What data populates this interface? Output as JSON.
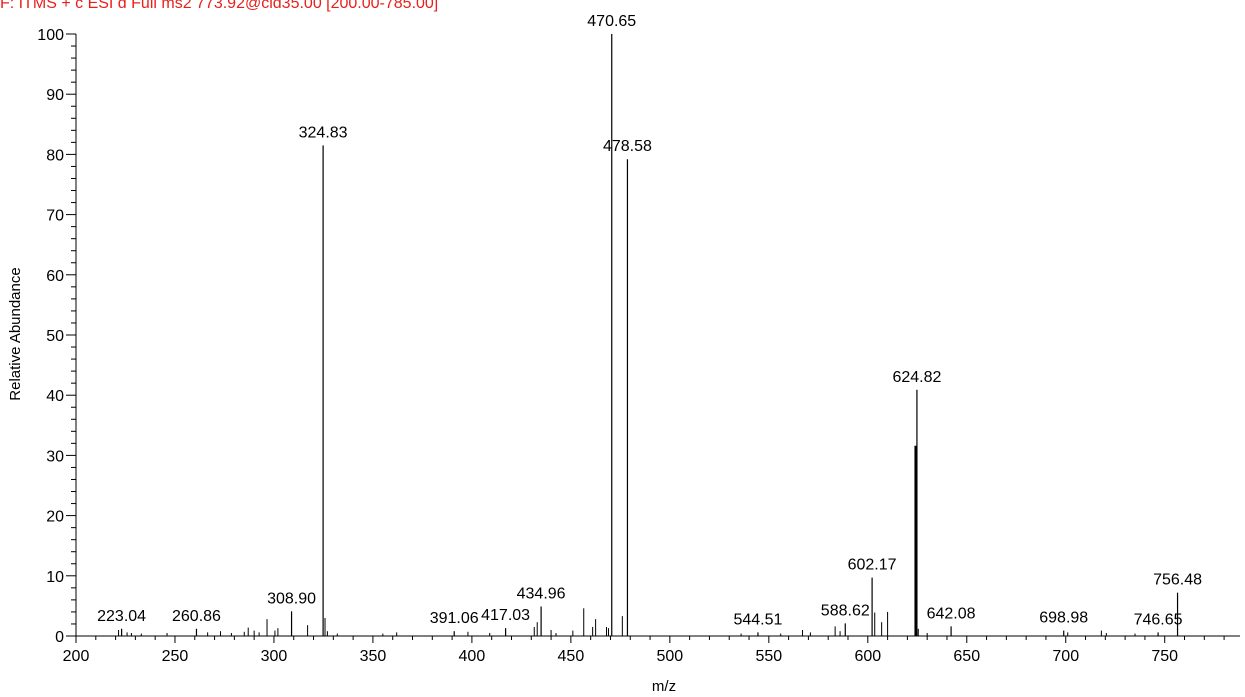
{
  "header": {
    "scan_filter": "F: ITMS + c ESI d Full ms2 773.92@cid35.00 [200.00-785.00]"
  },
  "colors": {
    "header_text": "#e8201c",
    "peak": "#000000",
    "label_connector": "#1aa33a"
  },
  "chart_data": {
    "type": "bar",
    "subtype": "mass-spectrum-stick",
    "xlabel": "m/z",
    "ylabel": "Relative Abundance",
    "xlim": [
      200,
      785
    ],
    "ylim": [
      0,
      100
    ],
    "x_ticks": [
      200,
      250,
      300,
      350,
      400,
      450,
      500,
      550,
      600,
      650,
      700,
      750
    ],
    "y_ticks": [
      0,
      10,
      20,
      30,
      40,
      50,
      60,
      70,
      80,
      90,
      100
    ],
    "grid": false,
    "labeled_peaks": [
      {
        "mz": 223.04,
        "intensity": 1.2,
        "label": "223.04"
      },
      {
        "mz": 260.86,
        "intensity": 1.2,
        "label": "260.86"
      },
      {
        "mz": 308.9,
        "intensity": 4.1,
        "label": "308.90"
      },
      {
        "mz": 324.83,
        "intensity": 81.5,
        "label": "324.83"
      },
      {
        "mz": 391.06,
        "intensity": 0.8,
        "label": "391.06"
      },
      {
        "mz": 417.03,
        "intensity": 1.3,
        "label": "417.03"
      },
      {
        "mz": 434.96,
        "intensity": 4.9,
        "label": "434.96"
      },
      {
        "mz": 470.65,
        "intensity": 100,
        "label": "470.65"
      },
      {
        "mz": 478.58,
        "intensity": 79.2,
        "label": "478.58"
      },
      {
        "mz": 544.51,
        "intensity": 0.6,
        "label": "544.51"
      },
      {
        "mz": 588.62,
        "intensity": 2.1,
        "label": "588.62"
      },
      {
        "mz": 602.17,
        "intensity": 9.7,
        "label": "602.17"
      },
      {
        "mz": 624.82,
        "intensity": 40.9,
        "label": "624.82"
      },
      {
        "mz": 642.08,
        "intensity": 1.6,
        "label": "642.08"
      },
      {
        "mz": 698.98,
        "intensity": 0.9,
        "label": "698.98"
      },
      {
        "mz": 746.65,
        "intensity": 0.6,
        "label": "746.65"
      },
      {
        "mz": 756.48,
        "intensity": 7.2,
        "label": "756.48"
      }
    ],
    "minor_peaks": [
      {
        "mz": 221.5,
        "intensity": 1.0
      },
      {
        "mz": 225.8,
        "intensity": 0.6
      },
      {
        "mz": 228.0,
        "intensity": 0.5
      },
      {
        "mz": 233.0,
        "intensity": 0.4
      },
      {
        "mz": 246.0,
        "intensity": 0.5
      },
      {
        "mz": 266.5,
        "intensity": 0.6
      },
      {
        "mz": 273.0,
        "intensity": 0.8
      },
      {
        "mz": 278.5,
        "intensity": 0.5
      },
      {
        "mz": 285.0,
        "intensity": 0.7
      },
      {
        "mz": 287.0,
        "intensity": 1.4
      },
      {
        "mz": 290.0,
        "intensity": 0.9
      },
      {
        "mz": 292.5,
        "intensity": 0.6
      },
      {
        "mz": 296.5,
        "intensity": 2.8
      },
      {
        "mz": 300.5,
        "intensity": 0.9
      },
      {
        "mz": 302.0,
        "intensity": 1.3
      },
      {
        "mz": 317.0,
        "intensity": 1.8
      },
      {
        "mz": 325.8,
        "intensity": 3.0
      },
      {
        "mz": 327.0,
        "intensity": 0.8
      },
      {
        "mz": 332.0,
        "intensity": 0.4
      },
      {
        "mz": 355.0,
        "intensity": 0.4
      },
      {
        "mz": 362.0,
        "intensity": 0.6
      },
      {
        "mz": 398.0,
        "intensity": 0.7
      },
      {
        "mz": 409.0,
        "intensity": 0.5
      },
      {
        "mz": 431.5,
        "intensity": 1.5
      },
      {
        "mz": 433.0,
        "intensity": 2.3
      },
      {
        "mz": 440.0,
        "intensity": 1.0
      },
      {
        "mz": 442.5,
        "intensity": 0.5
      },
      {
        "mz": 451.0,
        "intensity": 0.9
      },
      {
        "mz": 456.5,
        "intensity": 4.6
      },
      {
        "mz": 461.0,
        "intensity": 1.5
      },
      {
        "mz": 462.5,
        "intensity": 2.8
      },
      {
        "mz": 468.0,
        "intensity": 1.5
      },
      {
        "mz": 469.0,
        "intensity": 1.3
      },
      {
        "mz": 476.0,
        "intensity": 3.3
      },
      {
        "mz": 536.0,
        "intensity": 0.4
      },
      {
        "mz": 556.0,
        "intensity": 0.4
      },
      {
        "mz": 567.0,
        "intensity": 1.0
      },
      {
        "mz": 571.0,
        "intensity": 0.6
      },
      {
        "mz": 583.5,
        "intensity": 1.6
      },
      {
        "mz": 586.0,
        "intensity": 0.8
      },
      {
        "mz": 603.5,
        "intensity": 3.9
      },
      {
        "mz": 607.0,
        "intensity": 2.3
      },
      {
        "mz": 610.0,
        "intensity": 4.0
      },
      {
        "mz": 624.2,
        "intensity": 31.6
      },
      {
        "mz": 625.5,
        "intensity": 1.2
      },
      {
        "mz": 630.0,
        "intensity": 0.5
      },
      {
        "mz": 701.0,
        "intensity": 0.6
      },
      {
        "mz": 718.0,
        "intensity": 0.9
      },
      {
        "mz": 720.5,
        "intensity": 0.5
      },
      {
        "mz": 735.0,
        "intensity": 0.4
      }
    ]
  }
}
